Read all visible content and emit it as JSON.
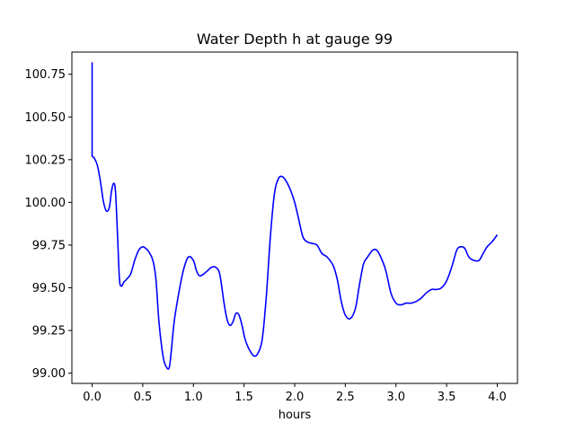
{
  "chart_data": {
    "type": "line",
    "title": "Water Depth h at gauge 99",
    "xlabel": "hours",
    "ylabel": "",
    "xlim": [
      -0.2,
      4.2
    ],
    "ylim": [
      98.94,
      100.88
    ],
    "xticks": [
      0.0,
      0.5,
      1.0,
      1.5,
      2.0,
      2.5,
      3.0,
      3.5,
      4.0
    ],
    "xtick_labels": [
      "0.0",
      "0.5",
      "1.0",
      "1.5",
      "2.0",
      "2.5",
      "3.0",
      "3.5",
      "4.0"
    ],
    "yticks": [
      99.0,
      99.25,
      99.5,
      99.75,
      100.0,
      100.25,
      100.5,
      100.75
    ],
    "ytick_labels": [
      "99.00",
      "99.25",
      "99.50",
      "99.75",
      "100.00",
      "100.25",
      "100.50",
      "100.75"
    ],
    "grid": false,
    "series": [
      {
        "color": "#0000ff",
        "x": [
          0.0,
          0.0,
          0.02,
          0.05,
          0.08,
          0.11,
          0.14,
          0.17,
          0.19,
          0.21,
          0.23,
          0.25,
          0.27,
          0.29,
          0.31,
          0.34,
          0.38,
          0.42,
          0.46,
          0.5,
          0.53,
          0.56,
          0.6,
          0.63,
          0.66,
          0.7,
          0.73,
          0.76,
          0.78,
          0.81,
          0.85,
          0.9,
          0.95,
          1.0,
          1.03,
          1.06,
          1.1,
          1.14,
          1.18,
          1.22,
          1.26,
          1.3,
          1.33,
          1.36,
          1.39,
          1.42,
          1.45,
          1.48,
          1.51,
          1.55,
          1.6,
          1.64,
          1.68,
          1.72,
          1.76,
          1.8,
          1.84,
          1.88,
          1.92,
          1.96,
          2.0,
          2.04,
          2.08,
          2.12,
          2.17,
          2.22,
          2.27,
          2.32,
          2.38,
          2.42,
          2.46,
          2.5,
          2.55,
          2.6,
          2.64,
          2.68,
          2.72,
          2.77,
          2.81,
          2.85,
          2.9,
          2.95,
          3.0,
          3.05,
          3.1,
          3.15,
          3.2,
          3.25,
          3.3,
          3.35,
          3.4,
          3.45,
          3.5,
          3.55,
          3.6,
          3.64,
          3.68,
          3.72,
          3.77,
          3.82,
          3.86,
          3.9,
          3.95,
          4.0
        ],
        "y": [
          100.82,
          100.27,
          100.26,
          100.22,
          100.13,
          100.01,
          99.95,
          99.97,
          100.06,
          100.11,
          100.07,
          99.82,
          99.55,
          99.51,
          99.53,
          99.55,
          99.58,
          99.66,
          99.72,
          99.74,
          99.73,
          99.71,
          99.66,
          99.55,
          99.3,
          99.1,
          99.04,
          99.03,
          99.12,
          99.3,
          99.45,
          99.6,
          99.68,
          99.66,
          99.6,
          99.57,
          99.58,
          99.6,
          99.62,
          99.62,
          99.58,
          99.42,
          99.32,
          99.28,
          99.3,
          99.35,
          99.34,
          99.28,
          99.2,
          99.14,
          99.1,
          99.12,
          99.2,
          99.45,
          99.8,
          100.05,
          100.14,
          100.15,
          100.12,
          100.07,
          100.0,
          99.9,
          99.8,
          99.77,
          99.76,
          99.75,
          99.7,
          99.68,
          99.63,
          99.55,
          99.42,
          99.34,
          99.32,
          99.38,
          99.52,
          99.64,
          99.68,
          99.72,
          99.72,
          99.68,
          99.6,
          99.47,
          99.41,
          99.4,
          99.41,
          99.41,
          99.42,
          99.44,
          99.47,
          99.49,
          99.49,
          99.5,
          99.54,
          99.62,
          99.72,
          99.74,
          99.73,
          99.68,
          99.66,
          99.66,
          99.7,
          99.74,
          99.77,
          99.81
        ]
      }
    ]
  }
}
